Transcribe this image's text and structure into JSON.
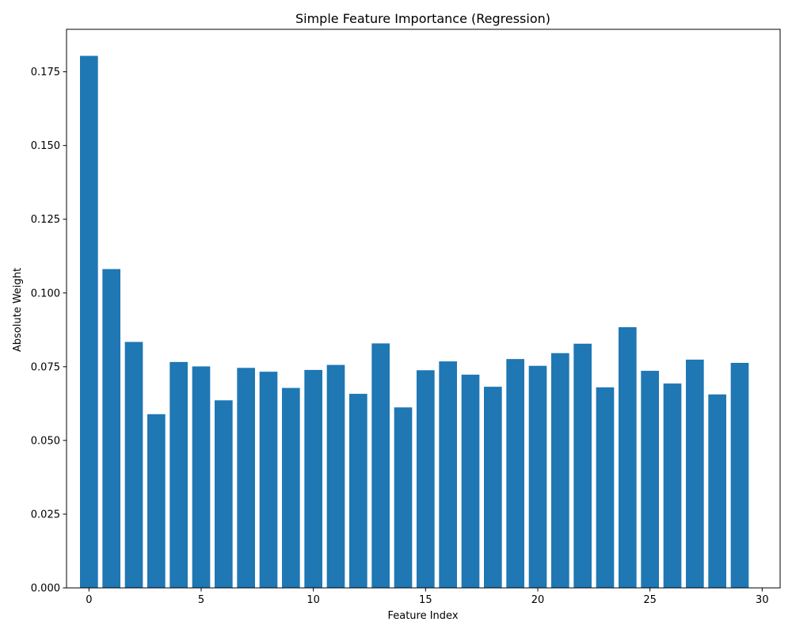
{
  "chart_data": {
    "type": "bar",
    "title": "Simple Feature Importance (Regression)",
    "xlabel": "Feature Index",
    "ylabel": "Absolute Weight",
    "x": [
      0,
      1,
      2,
      3,
      4,
      5,
      6,
      7,
      8,
      9,
      10,
      11,
      12,
      13,
      14,
      15,
      16,
      17,
      18,
      19,
      20,
      21,
      22,
      23,
      24,
      25,
      26,
      27,
      28,
      29
    ],
    "values": [
      0.1804,
      0.1081,
      0.0834,
      0.0589,
      0.0766,
      0.0751,
      0.0636,
      0.0746,
      0.0733,
      0.0678,
      0.0739,
      0.0756,
      0.0658,
      0.0829,
      0.0612,
      0.0738,
      0.0768,
      0.0723,
      0.0682,
      0.0776,
      0.0753,
      0.0796,
      0.0828,
      0.068,
      0.0884,
      0.0736,
      0.0693,
      0.0774,
      0.0656,
      0.0763
    ],
    "xlim": [
      -1.0,
      30.8
    ],
    "ylim": [
      0,
      0.1894
    ],
    "xticks": [
      0,
      5,
      10,
      15,
      20,
      25,
      30
    ],
    "yticks": [
      0.0,
      0.025,
      0.05,
      0.075,
      0.1,
      0.125,
      0.15,
      0.175
    ],
    "ytick_labels": [
      "0.000",
      "0.025",
      "0.050",
      "0.075",
      "0.100",
      "0.125",
      "0.150",
      "0.175"
    ],
    "xtick_labels": [
      "0",
      "5",
      "10",
      "15",
      "20",
      "25",
      "30"
    ],
    "bar_color": "#1f77b4",
    "grid": false,
    "legend": "none"
  }
}
